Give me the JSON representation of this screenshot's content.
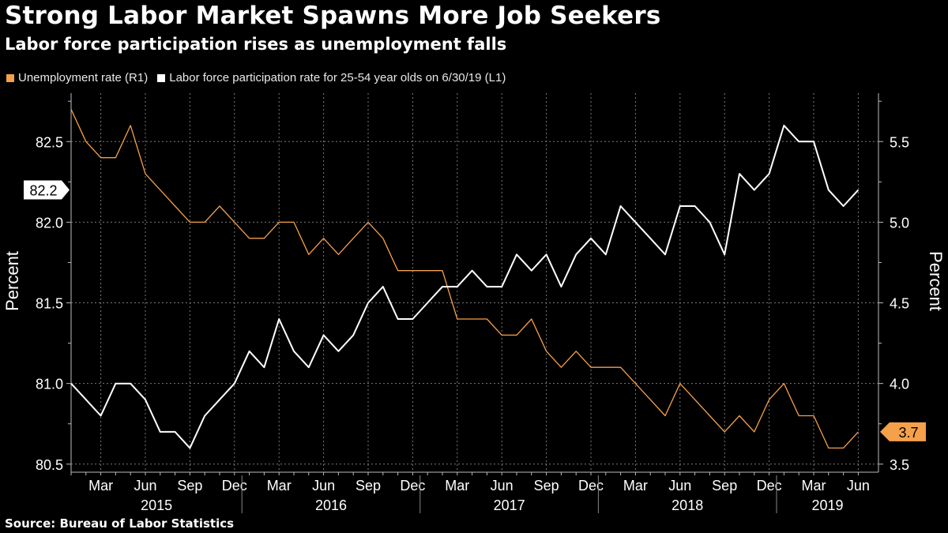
{
  "header": {
    "title": "Strong Labor Market Spawns More Job Seekers",
    "subtitle": "Labor force participation rises as unemployment falls"
  },
  "footer": {
    "source": "Source: Bureau of Labor Statistics"
  },
  "colors": {
    "background": "#000000",
    "unemployment": "#f5a04b",
    "participation": "#ffffff",
    "grid": "#7a7a7a"
  },
  "chart_data": {
    "type": "line",
    "grid": true,
    "legend_position": "top-left",
    "x": [
      "2015-01",
      "2015-02",
      "2015-03",
      "2015-04",
      "2015-05",
      "2015-06",
      "2015-07",
      "2015-08",
      "2015-09",
      "2015-10",
      "2015-11",
      "2015-12",
      "2016-01",
      "2016-02",
      "2016-03",
      "2016-04",
      "2016-05",
      "2016-06",
      "2016-07",
      "2016-08",
      "2016-09",
      "2016-10",
      "2016-11",
      "2016-12",
      "2017-01",
      "2017-02",
      "2017-03",
      "2017-04",
      "2017-05",
      "2017-06",
      "2017-07",
      "2017-08",
      "2017-09",
      "2017-10",
      "2017-11",
      "2017-12",
      "2018-01",
      "2018-02",
      "2018-03",
      "2018-04",
      "2018-05",
      "2018-06",
      "2018-07",
      "2018-08",
      "2018-09",
      "2018-10",
      "2018-11",
      "2018-12",
      "2019-01",
      "2019-02",
      "2019-03",
      "2019-04",
      "2019-05",
      "2019-06"
    ],
    "x_tick_labels": [
      "Mar",
      "Jun",
      "Sep",
      "Dec",
      "Mar",
      "Jun",
      "Sep",
      "Dec",
      "Mar",
      "Jun",
      "Sep",
      "Dec",
      "Mar",
      "Jun",
      "Sep",
      "Dec",
      "Mar",
      "Jun"
    ],
    "x_year_labels": [
      "2015",
      "2016",
      "2017",
      "2018",
      "2019"
    ],
    "y_left": {
      "label": "Percent",
      "range": [
        80.45,
        82.8
      ],
      "ticks": [
        "80.5",
        "81.0",
        "81.5",
        "82.0",
        "82.5"
      ]
    },
    "y_right": {
      "label": "Percent",
      "range": [
        3.45,
        5.8
      ],
      "ticks": [
        "3.5",
        "4.0",
        "4.5",
        "5.0",
        "5.5"
      ]
    },
    "series": [
      {
        "name": "Unemployment rate (R1)",
        "axis": "right",
        "values": [
          5.7,
          5.5,
          5.4,
          5.4,
          5.6,
          5.3,
          5.2,
          5.1,
          5.0,
          5.0,
          5.1,
          5.0,
          4.9,
          4.9,
          5.0,
          5.0,
          4.8,
          4.9,
          4.8,
          4.9,
          5.0,
          4.9,
          4.7,
          4.7,
          4.7,
          4.7,
          4.4,
          4.4,
          4.4,
          4.3,
          4.3,
          4.4,
          4.2,
          4.1,
          4.2,
          4.1,
          4.1,
          4.1,
          4.0,
          3.9,
          3.8,
          4.0,
          3.9,
          3.8,
          3.7,
          3.8,
          3.7,
          3.9,
          4.0,
          3.8,
          3.8,
          3.6,
          3.6,
          3.7
        ],
        "last_value_label": "3.7"
      },
      {
        "name": "Labor force participation rate for 25-54 year olds on 6/30/19 (L1)",
        "axis": "left",
        "values": [
          81.0,
          80.9,
          80.8,
          81.0,
          81.0,
          80.9,
          80.7,
          80.7,
          80.6,
          80.8,
          80.9,
          81.0,
          81.2,
          81.1,
          81.4,
          81.2,
          81.1,
          81.3,
          81.2,
          81.3,
          81.5,
          81.6,
          81.4,
          81.4,
          81.5,
          81.6,
          81.6,
          81.7,
          81.6,
          81.6,
          81.8,
          81.7,
          81.8,
          81.6,
          81.8,
          81.9,
          81.8,
          82.1,
          82.0,
          81.9,
          81.8,
          82.1,
          82.1,
          82.0,
          81.8,
          82.3,
          82.2,
          82.3,
          82.6,
          82.5,
          82.5,
          82.2,
          82.1,
          82.2
        ],
        "last_value_label": "82.2"
      }
    ]
  }
}
